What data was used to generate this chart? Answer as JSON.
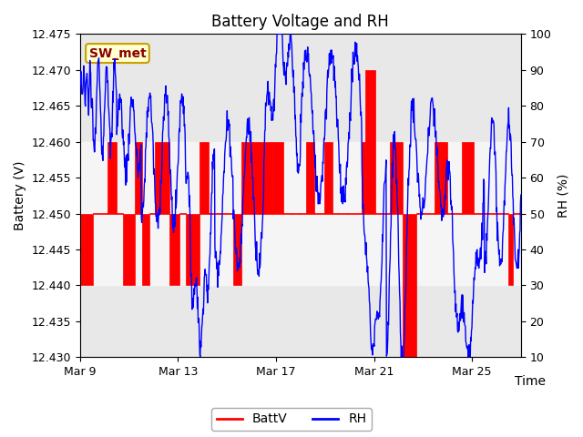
{
  "title": "Battery Voltage and RH",
  "xlabel": "Time",
  "ylabel_left": "Battery (V)",
  "ylabel_right": "RH (%)",
  "annotation": "SW_met",
  "ylim_left": [
    12.43,
    12.475
  ],
  "ylim_right": [
    10,
    100
  ],
  "yticks_left": [
    12.43,
    12.435,
    12.44,
    12.445,
    12.45,
    12.455,
    12.46,
    12.465,
    12.47,
    12.475
  ],
  "yticks_right": [
    10,
    20,
    30,
    40,
    50,
    60,
    70,
    80,
    90,
    100
  ],
  "x_tick_labels": [
    "Mar 9",
    "Mar 13",
    "Mar 17",
    "Mar 21",
    "Mar 25"
  ],
  "x_tick_positions": [
    0,
    4,
    8,
    12,
    16
  ],
  "xlim": [
    0,
    18
  ],
  "n_days": 18,
  "background_color": "#ffffff",
  "plot_bg_color": "#ffffff",
  "upper_band_color": "#e8e8e8",
  "lower_band_color": "#e8e8e8",
  "mid_band_color": "#f5f5f5",
  "bar_color": "#ff0000",
  "rh_color": "#0000ff",
  "legend_entries": [
    "BattV",
    "RH"
  ],
  "title_fontsize": 12,
  "axis_fontsize": 10,
  "tick_fontsize": 9
}
